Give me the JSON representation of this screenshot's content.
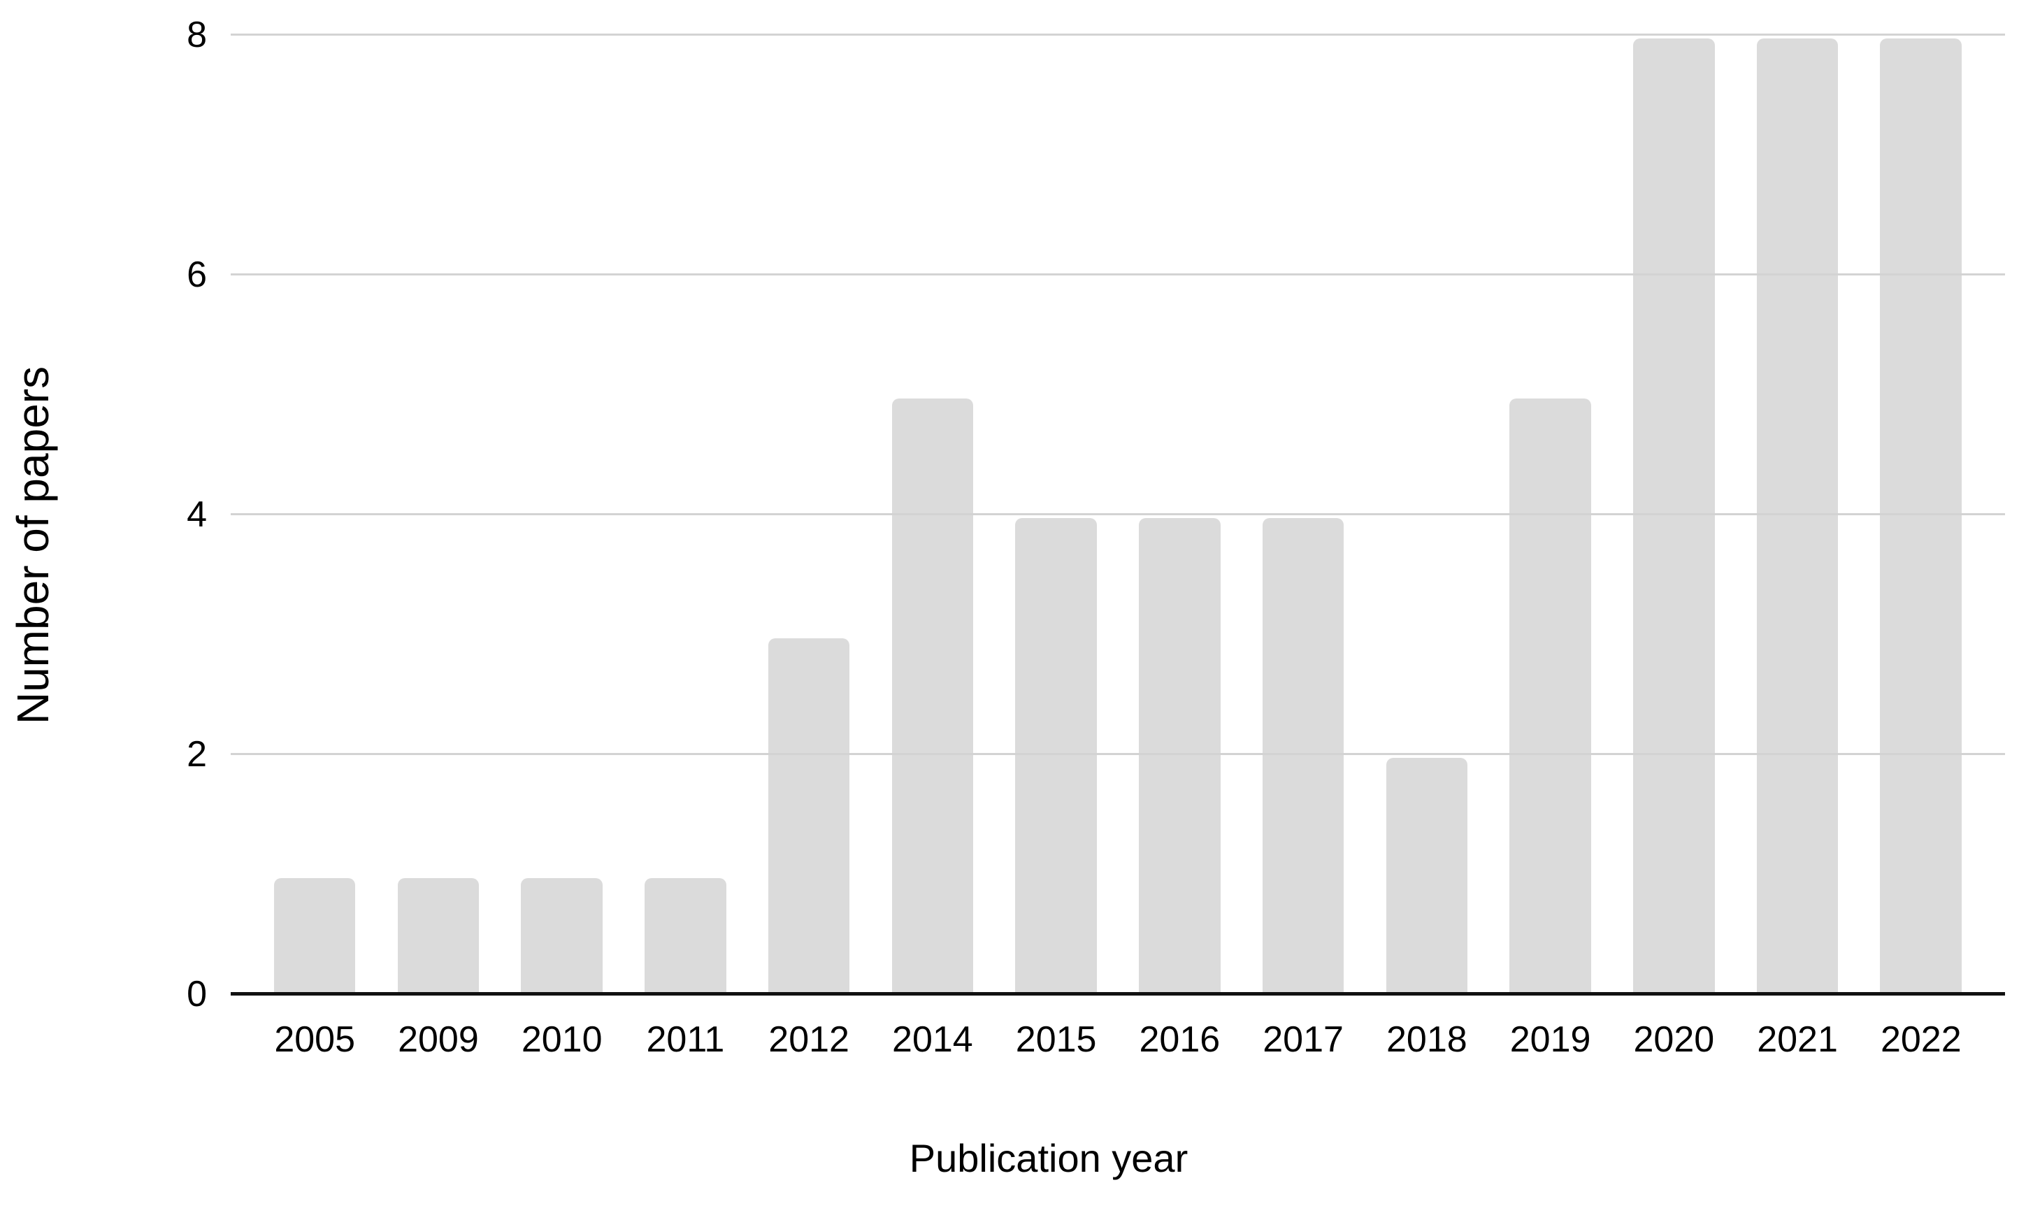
{
  "chart_data": {
    "type": "bar",
    "title": "",
    "xlabel": "Publication year",
    "ylabel": "Number of papers",
    "categories": [
      "2005",
      "2009",
      "2010",
      "2011",
      "2012",
      "2014",
      "2015",
      "2016",
      "2017",
      "2018",
      "2019",
      "2020",
      "2021",
      "2022"
    ],
    "values": [
      1,
      1,
      1,
      1,
      3,
      5,
      4,
      4,
      4,
      2,
      5,
      8,
      8,
      8
    ],
    "ylim": [
      0,
      8
    ],
    "yticks": [
      0,
      2,
      4,
      6,
      8
    ],
    "grid": true,
    "legend": false,
    "bar_color": "#dbdbdb",
    "gridline_color": "#d3d3d3",
    "axis_line_color": "#111111",
    "text_color": "#000000",
    "band_padding_inner": 0.34,
    "band_padding_outer": 0.35
  }
}
